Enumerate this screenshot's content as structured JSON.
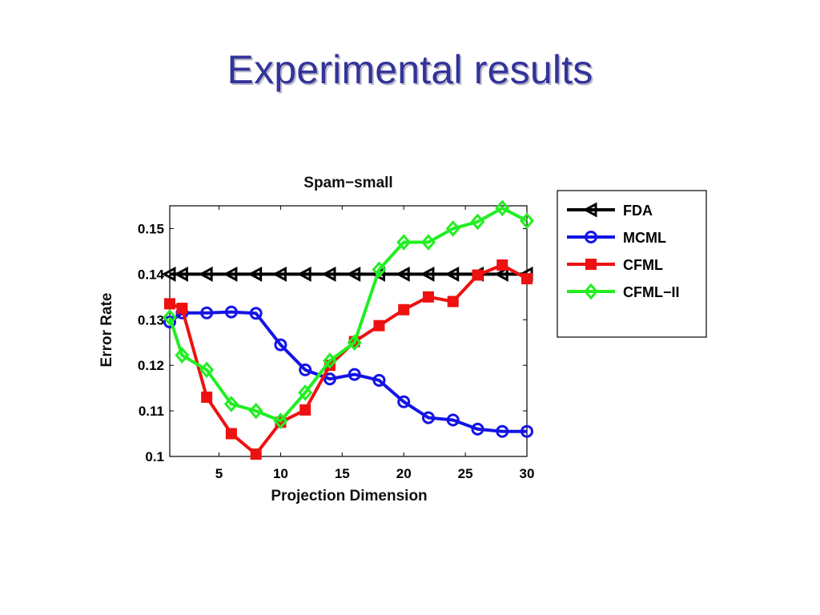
{
  "slide": {
    "title": "Experimental results"
  },
  "colors": {
    "title": "#33339a",
    "FDA": "#000000",
    "MCML": "#1414e6",
    "CFML": "#ee1111",
    "CFML-II": "#22ee22"
  },
  "chart_data": {
    "type": "line",
    "title": "Spam−small",
    "xlabel": "Projection Dimension",
    "ylabel": "Error Rate",
    "xlim": [
      1,
      30
    ],
    "ylim": [
      0.1,
      0.155
    ],
    "xticks": [
      5,
      10,
      15,
      20,
      25,
      30
    ],
    "yticks": [
      0.1,
      0.11,
      0.12,
      0.13,
      0.14,
      0.15
    ],
    "ytick_labels": [
      "0.1",
      "0.11",
      "0.12",
      "0.13",
      "0.14",
      "0.15"
    ],
    "grid": false,
    "legend_position": "outside-right",
    "series": [
      {
        "name": "FDA",
        "color": "#000000",
        "marker": "triangle-left",
        "points": [
          [
            1,
            0.14
          ],
          [
            2,
            0.14
          ],
          [
            4,
            0.14
          ],
          [
            6,
            0.14
          ],
          [
            8,
            0.14
          ],
          [
            10,
            0.14
          ],
          [
            12,
            0.14
          ],
          [
            14,
            0.14
          ],
          [
            16,
            0.14
          ],
          [
            18,
            0.14
          ],
          [
            20,
            0.14
          ],
          [
            22,
            0.14
          ],
          [
            24,
            0.14
          ],
          [
            26,
            0.14
          ],
          [
            28,
            0.14
          ],
          [
            30,
            0.14
          ]
        ]
      },
      {
        "name": "MCML",
        "color": "#1414e6",
        "marker": "circle",
        "points": [
          [
            1,
            0.1295
          ],
          [
            2,
            0.1315
          ],
          [
            4,
            0.1315
          ],
          [
            6,
            0.1317
          ],
          [
            8,
            0.1314
          ],
          [
            10,
            0.1245
          ],
          [
            12,
            0.119
          ],
          [
            14,
            0.117
          ],
          [
            16,
            0.118
          ],
          [
            18,
            0.1167
          ],
          [
            20,
            0.112
          ],
          [
            22,
            0.1085
          ],
          [
            24,
            0.108
          ],
          [
            26,
            0.106
          ],
          [
            28,
            0.1055
          ],
          [
            30,
            0.1055
          ]
        ]
      },
      {
        "name": "CFML",
        "color": "#ee1111",
        "marker": "square",
        "points": [
          [
            1,
            0.1335
          ],
          [
            2,
            0.1325
          ],
          [
            4,
            0.113
          ],
          [
            6,
            0.105
          ],
          [
            8,
            0.1005
          ],
          [
            10,
            0.1075
          ],
          [
            12,
            0.1102
          ],
          [
            14,
            0.12
          ],
          [
            16,
            0.1252
          ],
          [
            18,
            0.1287
          ],
          [
            20,
            0.1322
          ],
          [
            22,
            0.135
          ],
          [
            24,
            0.134
          ],
          [
            26,
            0.1398
          ],
          [
            28,
            0.142
          ],
          [
            30,
            0.139
          ]
        ]
      },
      {
        "name": "CFML−II",
        "color": "#22ee22",
        "marker": "diamond",
        "points": [
          [
            1,
            0.1305
          ],
          [
            2,
            0.1222
          ],
          [
            4,
            0.119
          ],
          [
            6,
            0.1115
          ],
          [
            8,
            0.11
          ],
          [
            10,
            0.1078
          ],
          [
            12,
            0.114
          ],
          [
            14,
            0.121
          ],
          [
            16,
            0.125
          ],
          [
            18,
            0.141
          ],
          [
            20,
            0.147
          ],
          [
            22,
            0.147
          ],
          [
            24,
            0.15
          ],
          [
            26,
            0.1515
          ],
          [
            28,
            0.1545
          ],
          [
            30,
            0.1517
          ]
        ]
      }
    ]
  }
}
